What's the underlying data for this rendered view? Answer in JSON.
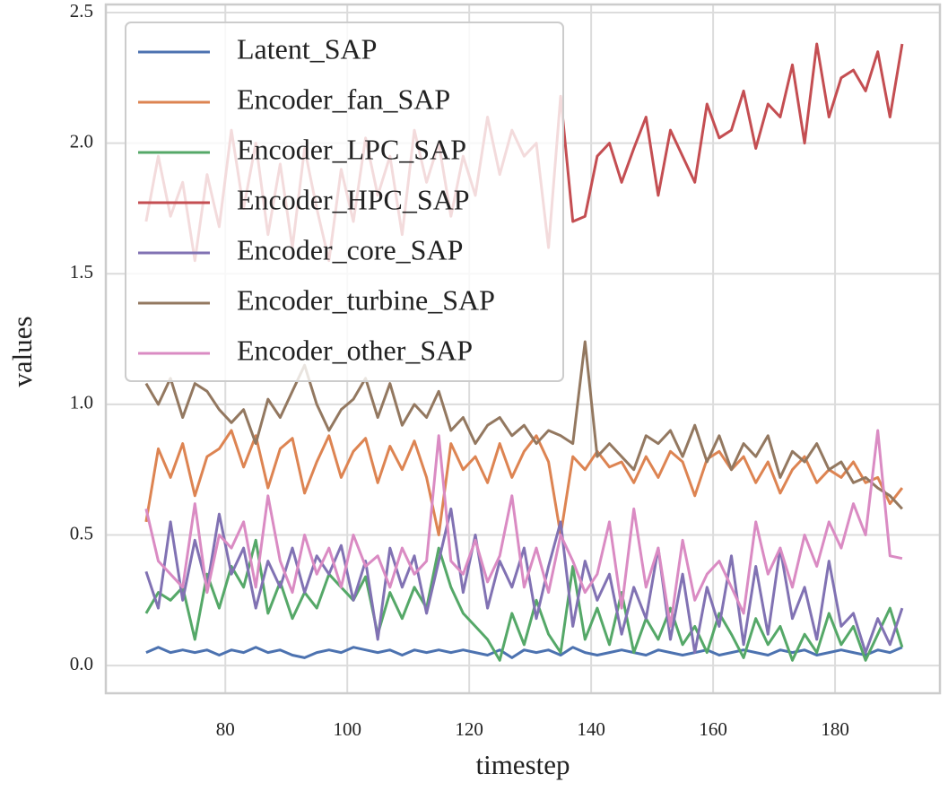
{
  "chart_data": {
    "type": "line",
    "x_label": "timestep",
    "y_label": "values",
    "x": [
      67,
      69,
      71,
      73,
      75,
      77,
      79,
      81,
      83,
      85,
      87,
      89,
      91,
      93,
      95,
      97,
      99,
      101,
      103,
      105,
      107,
      109,
      111,
      113,
      115,
      117,
      119,
      121,
      123,
      125,
      127,
      129,
      131,
      133,
      135,
      137,
      139,
      141,
      143,
      145,
      147,
      149,
      151,
      153,
      155,
      157,
      159,
      161,
      163,
      165,
      167,
      169,
      171,
      173,
      175,
      177,
      179,
      181,
      183,
      185,
      187,
      189,
      191
    ],
    "series": [
      {
        "name": "Latent_SAP",
        "color": "#4c72b0",
        "values": [
          0.05,
          0.07,
          0.05,
          0.06,
          0.05,
          0.06,
          0.04,
          0.06,
          0.05,
          0.07,
          0.05,
          0.06,
          0.04,
          0.03,
          0.05,
          0.06,
          0.05,
          0.07,
          0.06,
          0.05,
          0.06,
          0.04,
          0.06,
          0.05,
          0.06,
          0.05,
          0.06,
          0.05,
          0.04,
          0.06,
          0.03,
          0.06,
          0.05,
          0.06,
          0.04,
          0.07,
          0.05,
          0.04,
          0.05,
          0.06,
          0.05,
          0.04,
          0.06,
          0.05,
          0.04,
          0.05,
          0.06,
          0.04,
          0.05,
          0.06,
          0.05,
          0.04,
          0.06,
          0.05,
          0.06,
          0.04,
          0.05,
          0.06,
          0.05,
          0.04,
          0.06,
          0.05,
          0.07
        ]
      },
      {
        "name": "Encoder_fan_SAP",
        "color": "#dd8452",
        "values": [
          0.55,
          0.83,
          0.72,
          0.85,
          0.65,
          0.8,
          0.83,
          0.9,
          0.76,
          0.88,
          0.68,
          0.83,
          0.87,
          0.66,
          0.78,
          0.88,
          0.72,
          0.82,
          0.87,
          0.7,
          0.84,
          0.75,
          0.86,
          0.72,
          0.5,
          0.85,
          0.75,
          0.8,
          0.7,
          0.85,
          0.72,
          0.82,
          0.88,
          0.78,
          0.5,
          0.8,
          0.75,
          0.82,
          0.76,
          0.78,
          0.7,
          0.8,
          0.72,
          0.82,
          0.78,
          0.65,
          0.79,
          0.82,
          0.75,
          0.8,
          0.7,
          0.78,
          0.66,
          0.75,
          0.8,
          0.7,
          0.75,
          0.72,
          0.78,
          0.7,
          0.72,
          0.62,
          0.68
        ]
      },
      {
        "name": "Encoder_LPC_SAP",
        "color": "#55a868",
        "values": [
          0.2,
          0.28,
          0.25,
          0.3,
          0.1,
          0.35,
          0.22,
          0.38,
          0.3,
          0.48,
          0.2,
          0.32,
          0.18,
          0.28,
          0.22,
          0.35,
          0.3,
          0.25,
          0.34,
          0.12,
          0.28,
          0.18,
          0.3,
          0.22,
          0.45,
          0.3,
          0.2,
          0.15,
          0.1,
          0.02,
          0.2,
          0.08,
          0.25,
          0.12,
          0.05,
          0.38,
          0.1,
          0.22,
          0.08,
          0.28,
          0.05,
          0.18,
          0.1,
          0.22,
          0.08,
          0.15,
          0.05,
          0.2,
          0.12,
          0.03,
          0.18,
          0.08,
          0.15,
          0.02,
          0.12,
          0.05,
          0.2,
          0.08,
          0.15,
          0.02,
          0.12,
          0.22,
          0.07
        ]
      },
      {
        "name": "Encoder_HPC_SAP",
        "color": "#c44e52",
        "values": [
          1.7,
          1.95,
          1.72,
          1.85,
          1.55,
          1.88,
          1.68,
          2.05,
          1.75,
          2.0,
          1.65,
          1.92,
          1.6,
          1.98,
          1.75,
          1.55,
          1.9,
          1.7,
          2.02,
          1.8,
          1.95,
          1.65,
          2.05,
          1.85,
          2.0,
          1.72,
          1.95,
          1.8,
          2.1,
          1.88,
          2.05,
          1.95,
          2.0,
          1.6,
          2.18,
          1.7,
          1.72,
          1.95,
          2.0,
          1.85,
          1.98,
          2.1,
          1.8,
          2.05,
          1.95,
          1.85,
          2.15,
          2.02,
          2.05,
          2.2,
          1.98,
          2.15,
          2.1,
          2.3,
          2.0,
          2.38,
          2.1,
          2.25,
          2.28,
          2.2,
          2.35,
          2.1,
          2.38
        ]
      },
      {
        "name": "Encoder_core_SAP",
        "color": "#8172b3",
        "values": [
          0.36,
          0.22,
          0.55,
          0.25,
          0.48,
          0.3,
          0.58,
          0.35,
          0.45,
          0.22,
          0.4,
          0.3,
          0.45,
          0.28,
          0.42,
          0.35,
          0.46,
          0.25,
          0.4,
          0.1,
          0.45,
          0.3,
          0.42,
          0.2,
          0.4,
          0.6,
          0.28,
          0.5,
          0.22,
          0.4,
          0.3,
          0.45,
          0.18,
          0.38,
          0.55,
          0.15,
          0.4,
          0.25,
          0.35,
          0.12,
          0.3,
          0.18,
          0.45,
          0.1,
          0.35,
          0.05,
          0.3,
          0.15,
          0.42,
          0.08,
          0.38,
          0.12,
          0.45,
          0.18,
          0.3,
          0.1,
          0.4,
          0.15,
          0.2,
          0.05,
          0.18,
          0.08,
          0.22
        ]
      },
      {
        "name": "Encoder_turbine_SAP",
        "color": "#937860",
        "values": [
          1.08,
          1.0,
          1.1,
          0.95,
          1.08,
          1.05,
          0.98,
          0.93,
          0.98,
          0.85,
          1.02,
          0.95,
          1.05,
          1.15,
          1.0,
          0.9,
          0.98,
          1.02,
          1.1,
          0.95,
          1.08,
          0.92,
          1.0,
          0.95,
          1.05,
          0.9,
          0.95,
          0.85,
          0.92,
          0.95,
          0.88,
          0.92,
          0.85,
          0.9,
          0.88,
          0.85,
          1.24,
          0.8,
          0.85,
          0.8,
          0.75,
          0.88,
          0.85,
          0.9,
          0.8,
          0.92,
          0.78,
          0.88,
          0.75,
          0.85,
          0.8,
          0.88,
          0.72,
          0.82,
          0.78,
          0.85,
          0.75,
          0.78,
          0.7,
          0.72,
          0.68,
          0.65,
          0.6
        ]
      },
      {
        "name": "Encoder_other_SAP",
        "color": "#da8bc3",
        "values": [
          0.6,
          0.4,
          0.35,
          0.3,
          0.62,
          0.28,
          0.5,
          0.45,
          0.55,
          0.3,
          0.65,
          0.4,
          0.28,
          0.5,
          0.35,
          0.45,
          0.3,
          0.5,
          0.38,
          0.42,
          0.3,
          0.45,
          0.35,
          0.4,
          0.88,
          0.4,
          0.35,
          0.48,
          0.32,
          0.42,
          0.65,
          0.3,
          0.45,
          0.28,
          0.5,
          0.4,
          0.28,
          0.35,
          0.55,
          0.22,
          0.6,
          0.3,
          0.45,
          0.15,
          0.48,
          0.25,
          0.35,
          0.4,
          0.3,
          0.2,
          0.55,
          0.35,
          0.45,
          0.3,
          0.5,
          0.38,
          0.55,
          0.45,
          0.62,
          0.5,
          0.9,
          0.42,
          0.41
        ]
      }
    ],
    "xlim": [
      60.4,
      197.2
    ],
    "ylim": [
      -0.106,
      2.531
    ],
    "xticks": [
      80,
      100,
      120,
      140,
      160,
      180
    ],
    "yticks": [
      {
        "value": 0,
        "label": "0.0"
      },
      0.5,
      {
        "value": 1,
        "label": "1.0"
      },
      1.5,
      {
        "value": 2,
        "label": "2.0"
      },
      2.5
    ],
    "grid": true,
    "legend": "upper left"
  }
}
